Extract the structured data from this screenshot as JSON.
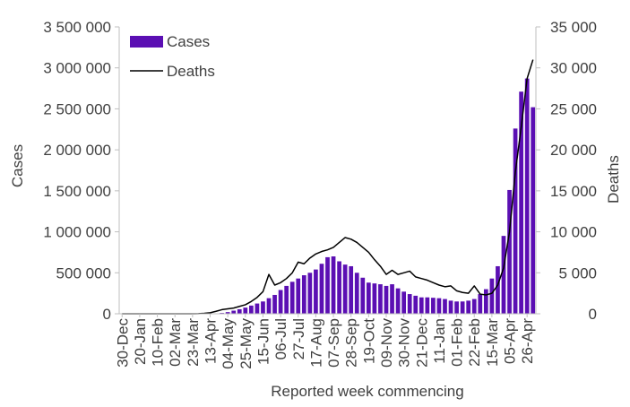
{
  "chart_data": {
    "type": "bar",
    "title": "",
    "xlabel": "Reported week commencing",
    "ylabel": "Cases",
    "y2label": "Deaths",
    "ylim": [
      0,
      3500000
    ],
    "y2lim": [
      0,
      35000
    ],
    "y_ticks": [
      "0",
      "500 000",
      "1 000 000",
      "1 500 000",
      "2 000 000",
      "2 500 000",
      "3 000 000",
      "3 500 000"
    ],
    "y2_ticks": [
      "0",
      "5 000",
      "10 000",
      "15 000",
      "20 000",
      "25 000",
      "30 000",
      "35 000"
    ],
    "x_tick_labels": [
      "30-Dec",
      "20-Jan",
      "10-Feb",
      "02-Mar",
      "23-Mar",
      "13-Apr",
      "04-May",
      "25-May",
      "15-Jun",
      "06-Jul",
      "27-Jul",
      "17-Aug",
      "07-Sep",
      "28-Sep",
      "19-Oct",
      "09-Nov",
      "30-Nov",
      "21-Dec",
      "11-Jan",
      "01-Feb",
      "22-Feb",
      "15-Mar",
      "05-Apr",
      "26-Apr"
    ],
    "legend_position": "top-left",
    "grid": false,
    "series": [
      {
        "name": "Cases",
        "kind": "bar",
        "axis": "left",
        "color": "#5b0fb3",
        "values": [
          0,
          0,
          0,
          0,
          0,
          0,
          0,
          0,
          0,
          0,
          0,
          0,
          0,
          0,
          0,
          500,
          4000,
          10000,
          20000,
          38000,
          55000,
          75000,
          100000,
          125000,
          150000,
          190000,
          230000,
          290000,
          340000,
          390000,
          430000,
          470000,
          500000,
          540000,
          610000,
          690000,
          700000,
          640000,
          600000,
          580000,
          500000,
          440000,
          380000,
          370000,
          360000,
          340000,
          360000,
          310000,
          270000,
          240000,
          220000,
          200000,
          200000,
          195000,
          190000,
          180000,
          160000,
          150000,
          150000,
          160000,
          180000,
          240000,
          300000,
          430000,
          580000,
          950000,
          1510000,
          2260000,
          2710000,
          2870000,
          2520000
        ]
      },
      {
        "name": "Deaths",
        "kind": "line",
        "axis": "right",
        "color": "#000000",
        "values": [
          0,
          0,
          0,
          0,
          0,
          0,
          0,
          0,
          0,
          0,
          0,
          0,
          0,
          10,
          50,
          120,
          300,
          500,
          600,
          700,
          900,
          1100,
          1500,
          2000,
          2700,
          4800,
          3500,
          3800,
          4300,
          5000,
          6300,
          6100,
          6800,
          7300,
          7600,
          7800,
          8100,
          8700,
          9300,
          9100,
          8700,
          8100,
          7500,
          6600,
          5800,
          4800,
          5300,
          4800,
          5000,
          5200,
          4500,
          4300,
          4100,
          3800,
          3500,
          3300,
          3400,
          2800,
          2600,
          2500,
          3400,
          2400,
          2300,
          2500,
          3500,
          5600,
          10000,
          17300,
          22800,
          28700,
          31000
        ]
      }
    ]
  }
}
